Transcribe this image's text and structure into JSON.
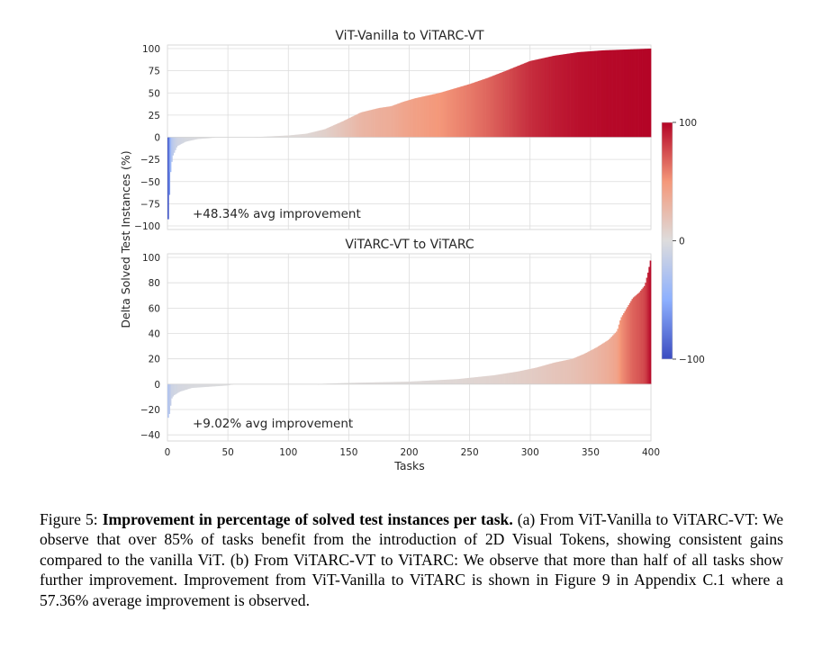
{
  "chart_data": [
    {
      "type": "bar",
      "title": "ViT-Vanilla to ViTARC-VT",
      "xlabel": "",
      "ylabel": "Delta Solved Test Instances (%)",
      "xlim": [
        0,
        400
      ],
      "ylim": [
        -100,
        100
      ],
      "yticks": [
        100,
        75,
        50,
        25,
        0,
        -25,
        -50,
        -75,
        -100
      ],
      "xticks": [
        0,
        50,
        100,
        150,
        200,
        250,
        300,
        350,
        400
      ],
      "annotation": "+48.34% avg improvement",
      "sorted_values_curve": [
        [
          0,
          -100
        ],
        [
          1,
          -85
        ],
        [
          2,
          -45
        ],
        [
          4,
          -22
        ],
        [
          8,
          -10
        ],
        [
          15,
          -5
        ],
        [
          25,
          -2
        ],
        [
          35,
          -1
        ],
        [
          40,
          0
        ],
        [
          70,
          0
        ],
        [
          100,
          2
        ],
        [
          115,
          4
        ],
        [
          130,
          9
        ],
        [
          145,
          18
        ],
        [
          160,
          28
        ],
        [
          175,
          33
        ],
        [
          185,
          35
        ],
        [
          195,
          40
        ],
        [
          205,
          44
        ],
        [
          215,
          47
        ],
        [
          225,
          50
        ],
        [
          235,
          54
        ],
        [
          250,
          60
        ],
        [
          265,
          67
        ],
        [
          280,
          75
        ],
        [
          300,
          86
        ],
        [
          320,
          92
        ],
        [
          340,
          96
        ],
        [
          360,
          98
        ],
        [
          380,
          99
        ],
        [
          400,
          100
        ]
      ],
      "grid": true
    },
    {
      "type": "bar",
      "title": "ViTARC-VT to ViTARC",
      "xlabel": "Tasks",
      "ylabel": "Delta Solved Test Instances (%)",
      "xlim": [
        0,
        400
      ],
      "ylim": [
        -42,
        100
      ],
      "yticks": [
        100,
        80,
        60,
        40,
        20,
        0,
        -20,
        -40
      ],
      "xticks": [
        0,
        50,
        100,
        150,
        200,
        250,
        300,
        350,
        400
      ],
      "annotation": "+9.02% avg improvement",
      "sorted_values_curve": [
        [
          0,
          -28
        ],
        [
          2,
          -22
        ],
        [
          3,
          -12
        ],
        [
          5,
          -9
        ],
        [
          10,
          -6
        ],
        [
          20,
          -3
        ],
        [
          35,
          -2
        ],
        [
          50,
          -1
        ],
        [
          55,
          0
        ],
        [
          120,
          0
        ],
        [
          150,
          1
        ],
        [
          200,
          2
        ],
        [
          240,
          4
        ],
        [
          270,
          7
        ],
        [
          290,
          10
        ],
        [
          305,
          13
        ],
        [
          320,
          17
        ],
        [
          335,
          20
        ],
        [
          345,
          24
        ],
        [
          355,
          29
        ],
        [
          365,
          35
        ],
        [
          372,
          42
        ],
        [
          375,
          52
        ],
        [
          380,
          60
        ],
        [
          385,
          68
        ],
        [
          390,
          72
        ],
        [
          395,
          78
        ],
        [
          398,
          90
        ],
        [
          400,
          100
        ]
      ],
      "grid": true
    }
  ],
  "colorbar": {
    "ticks": [
      100,
      0,
      -100
    ],
    "colormap": [
      "#3b4cc0",
      "#dddcdc",
      "#b40426"
    ]
  },
  "caption": {
    "label": "Figure 5:",
    "bold": "Improvement in percentage of solved test instances per task.",
    "text": "(a) From ViT-Vanilla to ViTARC-VT: We observe that over 85% of tasks benefit from the introduction of 2D Visual Tokens, showing consistent gains compared to the vanilla ViT. (b) From ViTARC-VT to ViTARC: We observe that more than half of all tasks show further improvement. Improvement from ViT-Vanilla to ViTARC is shown in Figure 9 in Appendix C.1 where a 57.36% average improvement is observed."
  }
}
